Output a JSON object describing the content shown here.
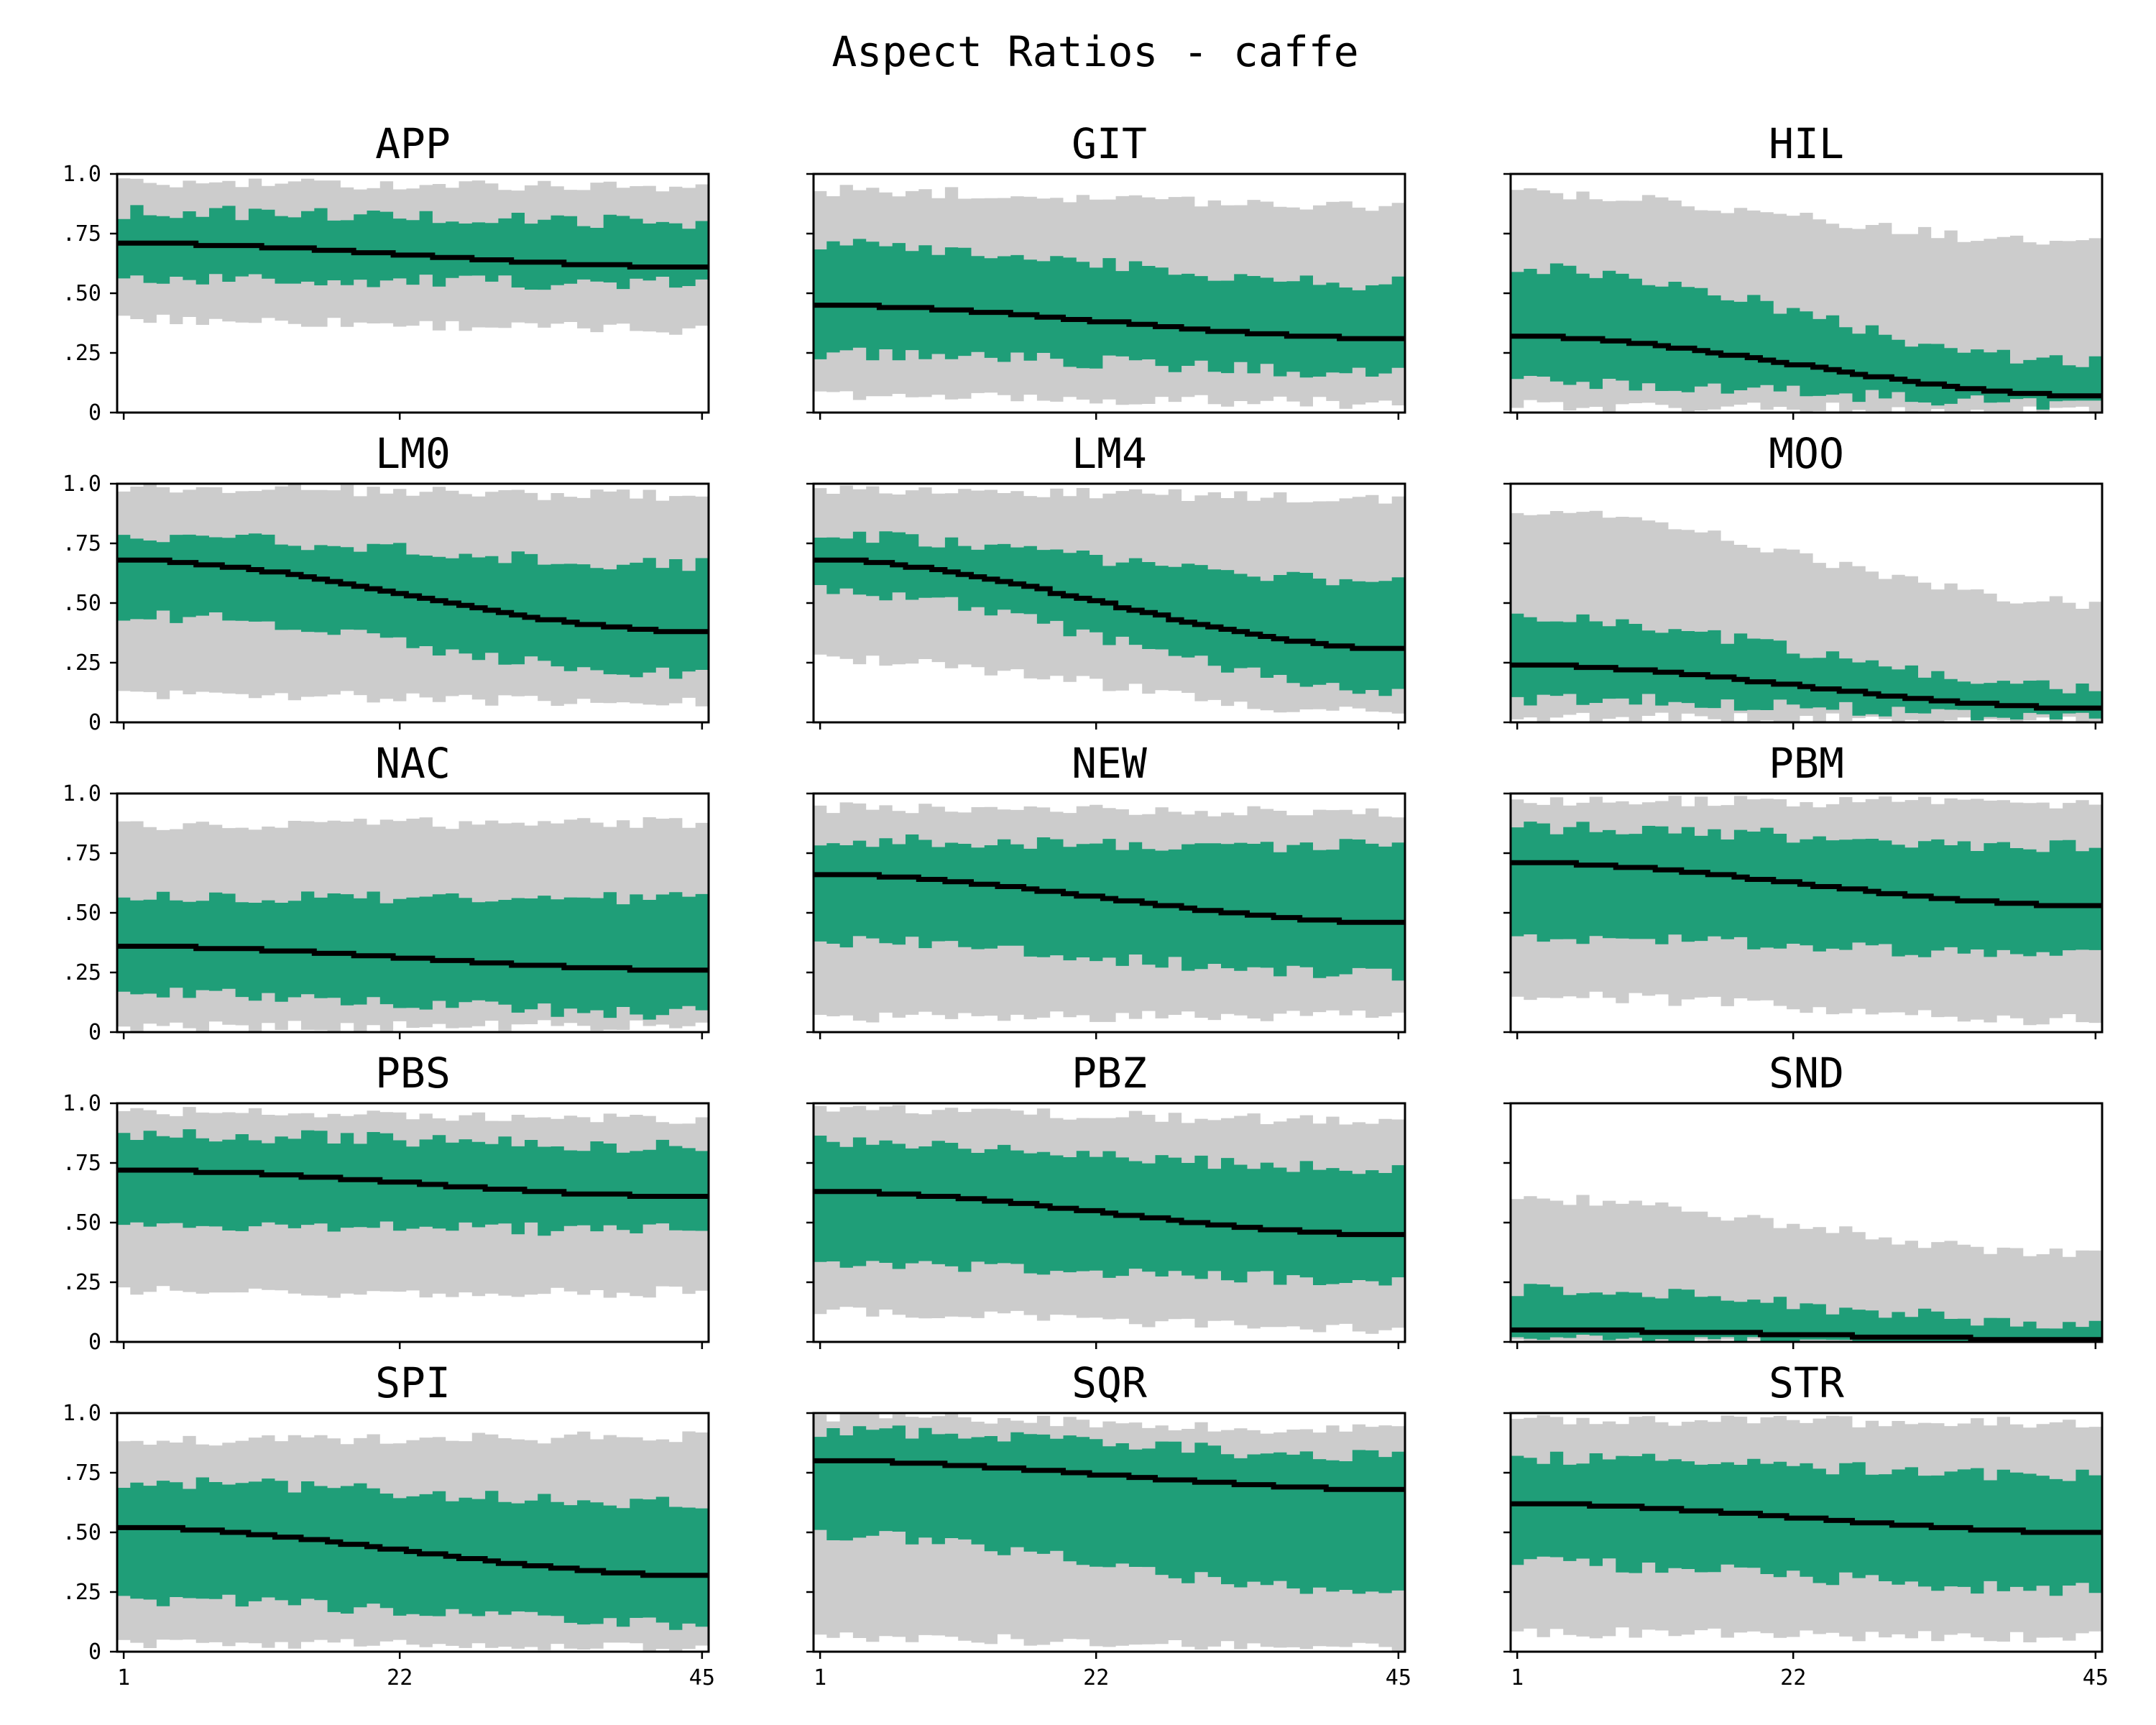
{
  "figure": {
    "title": "Aspect Ratios - caffe"
  },
  "chart_data": {
    "type": "area",
    "layout": "5x3 small multiples",
    "grid": false,
    "xlim": [
      1,
      45
    ],
    "ylim": [
      0,
      1
    ],
    "x_ticks": [
      "1",
      "22",
      "45"
    ],
    "y_ticks": [
      "0",
      ".25",
      ".50",
      ".75",
      "1.0"
    ],
    "colors": {
      "outer_band": "#cccccc",
      "inner_band": "#1f9e78",
      "median": "#000000"
    },
    "panels": [
      {
        "title": "APP",
        "median": [
          0.71,
          0.61
        ],
        "inner": [
          [
            0.56,
            0.84
          ],
          [
            0.54,
            0.8
          ]
        ],
        "outer": [
          [
            0.39,
            0.96
          ],
          [
            0.35,
            0.95
          ]
        ]
      },
      {
        "title": "GIT",
        "median": [
          0.45,
          0.31
        ],
        "inner": [
          [
            0.25,
            0.7
          ],
          [
            0.17,
            0.54
          ]
        ],
        "outer": [
          [
            0.07,
            0.93
          ],
          [
            0.04,
            0.87
          ]
        ]
      },
      {
        "title": "HIL",
        "median": [
          0.32,
          0.07
        ],
        "inner": [
          [
            0.13,
            0.61
          ],
          [
            0.04,
            0.21
          ]
        ],
        "outer": [
          [
            0.03,
            0.92
          ],
          [
            0.01,
            0.71
          ]
        ]
      },
      {
        "title": "LM0",
        "median": [
          0.68,
          0.38
        ],
        "inner": [
          [
            0.45,
            0.78
          ],
          [
            0.2,
            0.66
          ]
        ],
        "outer": [
          [
            0.12,
            0.98
          ],
          [
            0.08,
            0.95
          ]
        ]
      },
      {
        "title": "LM4",
        "median": [
          0.68,
          0.31
        ],
        "inner": [
          [
            0.55,
            0.78
          ],
          [
            0.14,
            0.59
          ]
        ],
        "outer": [
          [
            0.27,
            0.98
          ],
          [
            0.04,
            0.94
          ]
        ]
      },
      {
        "title": "MOO",
        "median": [
          0.24,
          0.06
        ],
        "inner": [
          [
            0.1,
            0.45
          ],
          [
            0.03,
            0.14
          ]
        ],
        "outer": [
          [
            0.02,
            0.89
          ],
          [
            0.01,
            0.5
          ]
        ]
      },
      {
        "title": "NAC",
        "median": [
          0.36,
          0.26
        ],
        "inner": [
          [
            0.16,
            0.56
          ],
          [
            0.08,
            0.56
          ]
        ],
        "outer": [
          [
            0.02,
            0.87
          ],
          [
            0.03,
            0.88
          ]
        ]
      },
      {
        "title": "NEW",
        "median": [
          0.66,
          0.46
        ],
        "inner": [
          [
            0.38,
            0.8
          ],
          [
            0.24,
            0.78
          ]
        ],
        "outer": [
          [
            0.06,
            0.94
          ],
          [
            0.07,
            0.92
          ]
        ]
      },
      {
        "title": "PBM",
        "median": [
          0.71,
          0.53
        ],
        "inner": [
          [
            0.4,
            0.86
          ],
          [
            0.32,
            0.78
          ]
        ],
        "outer": [
          [
            0.15,
            0.97
          ],
          [
            0.05,
            0.96
          ]
        ]
      },
      {
        "title": "PBS",
        "median": [
          0.72,
          0.61
        ],
        "inner": [
          [
            0.49,
            0.87
          ],
          [
            0.47,
            0.82
          ]
        ],
        "outer": [
          [
            0.21,
            0.97
          ],
          [
            0.21,
            0.93
          ]
        ]
      },
      {
        "title": "PBZ",
        "median": [
          0.63,
          0.45
        ],
        "inner": [
          [
            0.32,
            0.84
          ],
          [
            0.26,
            0.72
          ]
        ],
        "outer": [
          [
            0.13,
            0.97
          ],
          [
            0.05,
            0.93
          ]
        ]
      },
      {
        "title": "SND",
        "median": [
          0.05,
          0.01
        ],
        "inner": [
          [
            0.02,
            0.22
          ],
          [
            0.0,
            0.08
          ]
        ],
        "outer": [
          [
            0.01,
            0.6
          ],
          [
            0.0,
            0.37
          ]
        ]
      },
      {
        "title": "SPI",
        "median": [
          0.52,
          0.32
        ],
        "inner": [
          [
            0.22,
            0.71
          ],
          [
            0.12,
            0.62
          ]
        ],
        "outer": [
          [
            0.04,
            0.88
          ],
          [
            0.02,
            0.9
          ]
        ]
      },
      {
        "title": "SQR",
        "median": [
          0.8,
          0.68
        ],
        "inner": [
          [
            0.49,
            0.93
          ],
          [
            0.24,
            0.82
          ]
        ],
        "outer": [
          [
            0.06,
            0.99
          ],
          [
            0.02,
            0.93
          ]
        ]
      },
      {
        "title": "STR",
        "median": [
          0.62,
          0.5
        ],
        "inner": [
          [
            0.37,
            0.81
          ],
          [
            0.26,
            0.74
          ]
        ],
        "outer": [
          [
            0.08,
            0.97
          ],
          [
            0.06,
            0.96
          ]
        ]
      }
    ]
  }
}
